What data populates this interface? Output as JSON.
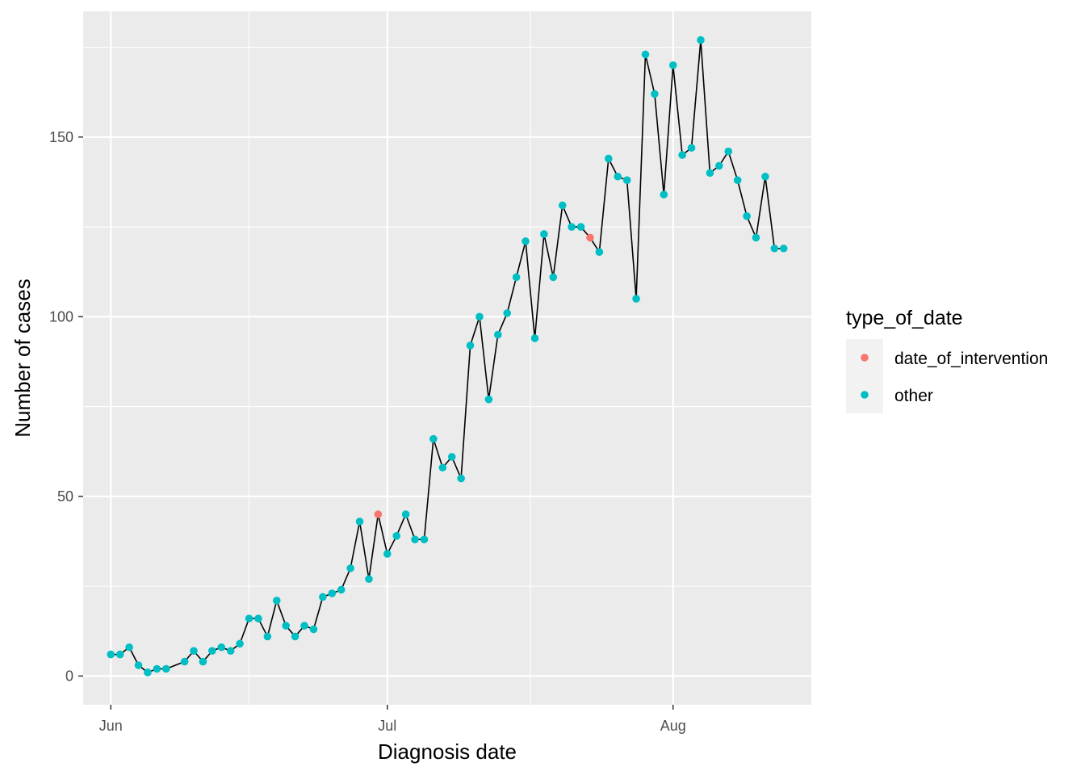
{
  "chart_data": {
    "type": "line",
    "xlabel": "Diagnosis date",
    "ylabel": "Number of cases",
    "x_tick_labels": [
      {
        "date": "2020-06-01",
        "label": "Jun"
      },
      {
        "date": "2020-07-01",
        "label": "Jul"
      },
      {
        "date": "2020-08-01",
        "label": "Aug"
      }
    ],
    "y_ticks": [
      0,
      50,
      100,
      150
    ],
    "xlim": [
      "2020-05-29",
      "2020-08-16"
    ],
    "ylim": [
      -8,
      185
    ],
    "grid": true,
    "legend": {
      "title": "type_of_date",
      "placement": "right",
      "entries": [
        {
          "label": "date_of_intervention",
          "color": "#F8766D"
        },
        {
          "label": "other",
          "color": "#00BFC4"
        }
      ]
    },
    "colors": {
      "panel_background": "#EBEBEB",
      "grid": "#FFFFFF",
      "line": "#000000"
    },
    "start_date": "2020-06-01",
    "points": [
      {
        "date": "2020-06-01",
        "value": 6,
        "type": "other"
      },
      {
        "date": "2020-06-02",
        "value": 6,
        "type": "other"
      },
      {
        "date": "2020-06-03",
        "value": 8,
        "type": "other"
      },
      {
        "date": "2020-06-04",
        "value": 3,
        "type": "other"
      },
      {
        "date": "2020-06-05",
        "value": 1,
        "type": "other"
      },
      {
        "date": "2020-06-06",
        "value": 2,
        "type": "other"
      },
      {
        "date": "2020-06-07",
        "value": 2,
        "type": "other"
      },
      {
        "date": "2020-06-09",
        "value": 4,
        "type": "other"
      },
      {
        "date": "2020-06-10",
        "value": 7,
        "type": "other"
      },
      {
        "date": "2020-06-11",
        "value": 4,
        "type": "other"
      },
      {
        "date": "2020-06-12",
        "value": 7,
        "type": "other"
      },
      {
        "date": "2020-06-13",
        "value": 8,
        "type": "other"
      },
      {
        "date": "2020-06-14",
        "value": 7,
        "type": "other"
      },
      {
        "date": "2020-06-15",
        "value": 9,
        "type": "other"
      },
      {
        "date": "2020-06-16",
        "value": 16,
        "type": "other"
      },
      {
        "date": "2020-06-17",
        "value": 16,
        "type": "other"
      },
      {
        "date": "2020-06-18",
        "value": 11,
        "type": "other"
      },
      {
        "date": "2020-06-19",
        "value": 21,
        "type": "other"
      },
      {
        "date": "2020-06-20",
        "value": 14,
        "type": "other"
      },
      {
        "date": "2020-06-21",
        "value": 11,
        "type": "other"
      },
      {
        "date": "2020-06-22",
        "value": 14,
        "type": "other"
      },
      {
        "date": "2020-06-23",
        "value": 13,
        "type": "other"
      },
      {
        "date": "2020-06-24",
        "value": 22,
        "type": "other"
      },
      {
        "date": "2020-06-25",
        "value": 23,
        "type": "other"
      },
      {
        "date": "2020-06-26",
        "value": 24,
        "type": "other"
      },
      {
        "date": "2020-06-27",
        "value": 30,
        "type": "other"
      },
      {
        "date": "2020-06-28",
        "value": 43,
        "type": "other"
      },
      {
        "date": "2020-06-29",
        "value": 27,
        "type": "other"
      },
      {
        "date": "2020-06-30",
        "value": 45,
        "type": "date_of_intervention"
      },
      {
        "date": "2020-07-01",
        "value": 34,
        "type": "other"
      },
      {
        "date": "2020-07-02",
        "value": 39,
        "type": "other"
      },
      {
        "date": "2020-07-03",
        "value": 45,
        "type": "other"
      },
      {
        "date": "2020-07-04",
        "value": 38,
        "type": "other"
      },
      {
        "date": "2020-07-05",
        "value": 38,
        "type": "other"
      },
      {
        "date": "2020-07-06",
        "value": 66,
        "type": "other"
      },
      {
        "date": "2020-07-07",
        "value": 58,
        "type": "other"
      },
      {
        "date": "2020-07-08",
        "value": 61,
        "type": "other"
      },
      {
        "date": "2020-07-09",
        "value": 55,
        "type": "other"
      },
      {
        "date": "2020-07-10",
        "value": 92,
        "type": "other"
      },
      {
        "date": "2020-07-11",
        "value": 100,
        "type": "other"
      },
      {
        "date": "2020-07-12",
        "value": 77,
        "type": "other"
      },
      {
        "date": "2020-07-13",
        "value": 95,
        "type": "other"
      },
      {
        "date": "2020-07-14",
        "value": 101,
        "type": "other"
      },
      {
        "date": "2020-07-15",
        "value": 111,
        "type": "other"
      },
      {
        "date": "2020-07-16",
        "value": 121,
        "type": "other"
      },
      {
        "date": "2020-07-17",
        "value": 94,
        "type": "other"
      },
      {
        "date": "2020-07-18",
        "value": 123,
        "type": "other"
      },
      {
        "date": "2020-07-19",
        "value": 111,
        "type": "other"
      },
      {
        "date": "2020-07-20",
        "value": 131,
        "type": "other"
      },
      {
        "date": "2020-07-21",
        "value": 125,
        "type": "other"
      },
      {
        "date": "2020-07-22",
        "value": 125,
        "type": "other"
      },
      {
        "date": "2020-07-23",
        "value": 122,
        "type": "date_of_intervention"
      },
      {
        "date": "2020-07-24",
        "value": 118,
        "type": "other"
      },
      {
        "date": "2020-07-25",
        "value": 144,
        "type": "other"
      },
      {
        "date": "2020-07-26",
        "value": 139,
        "type": "other"
      },
      {
        "date": "2020-07-27",
        "value": 138,
        "type": "other"
      },
      {
        "date": "2020-07-28",
        "value": 105,
        "type": "other"
      },
      {
        "date": "2020-07-29",
        "value": 173,
        "type": "other"
      },
      {
        "date": "2020-07-30",
        "value": 162,
        "type": "other"
      },
      {
        "date": "2020-07-31",
        "value": 134,
        "type": "other"
      },
      {
        "date": "2020-08-01",
        "value": 170,
        "type": "other"
      },
      {
        "date": "2020-08-02",
        "value": 145,
        "type": "other"
      },
      {
        "date": "2020-08-03",
        "value": 147,
        "type": "other"
      },
      {
        "date": "2020-08-04",
        "value": 177,
        "type": "other"
      },
      {
        "date": "2020-08-05",
        "value": 140,
        "type": "other"
      },
      {
        "date": "2020-08-06",
        "value": 142,
        "type": "other"
      },
      {
        "date": "2020-08-07",
        "value": 146,
        "type": "other"
      },
      {
        "date": "2020-08-08",
        "value": 138,
        "type": "other"
      },
      {
        "date": "2020-08-09",
        "value": 128,
        "type": "other"
      },
      {
        "date": "2020-08-10",
        "value": 122,
        "type": "other"
      },
      {
        "date": "2020-08-11",
        "value": 139,
        "type": "other"
      },
      {
        "date": "2020-08-12",
        "value": 119,
        "type": "other"
      },
      {
        "date": "2020-08-13",
        "value": 119,
        "type": "other"
      }
    ]
  }
}
